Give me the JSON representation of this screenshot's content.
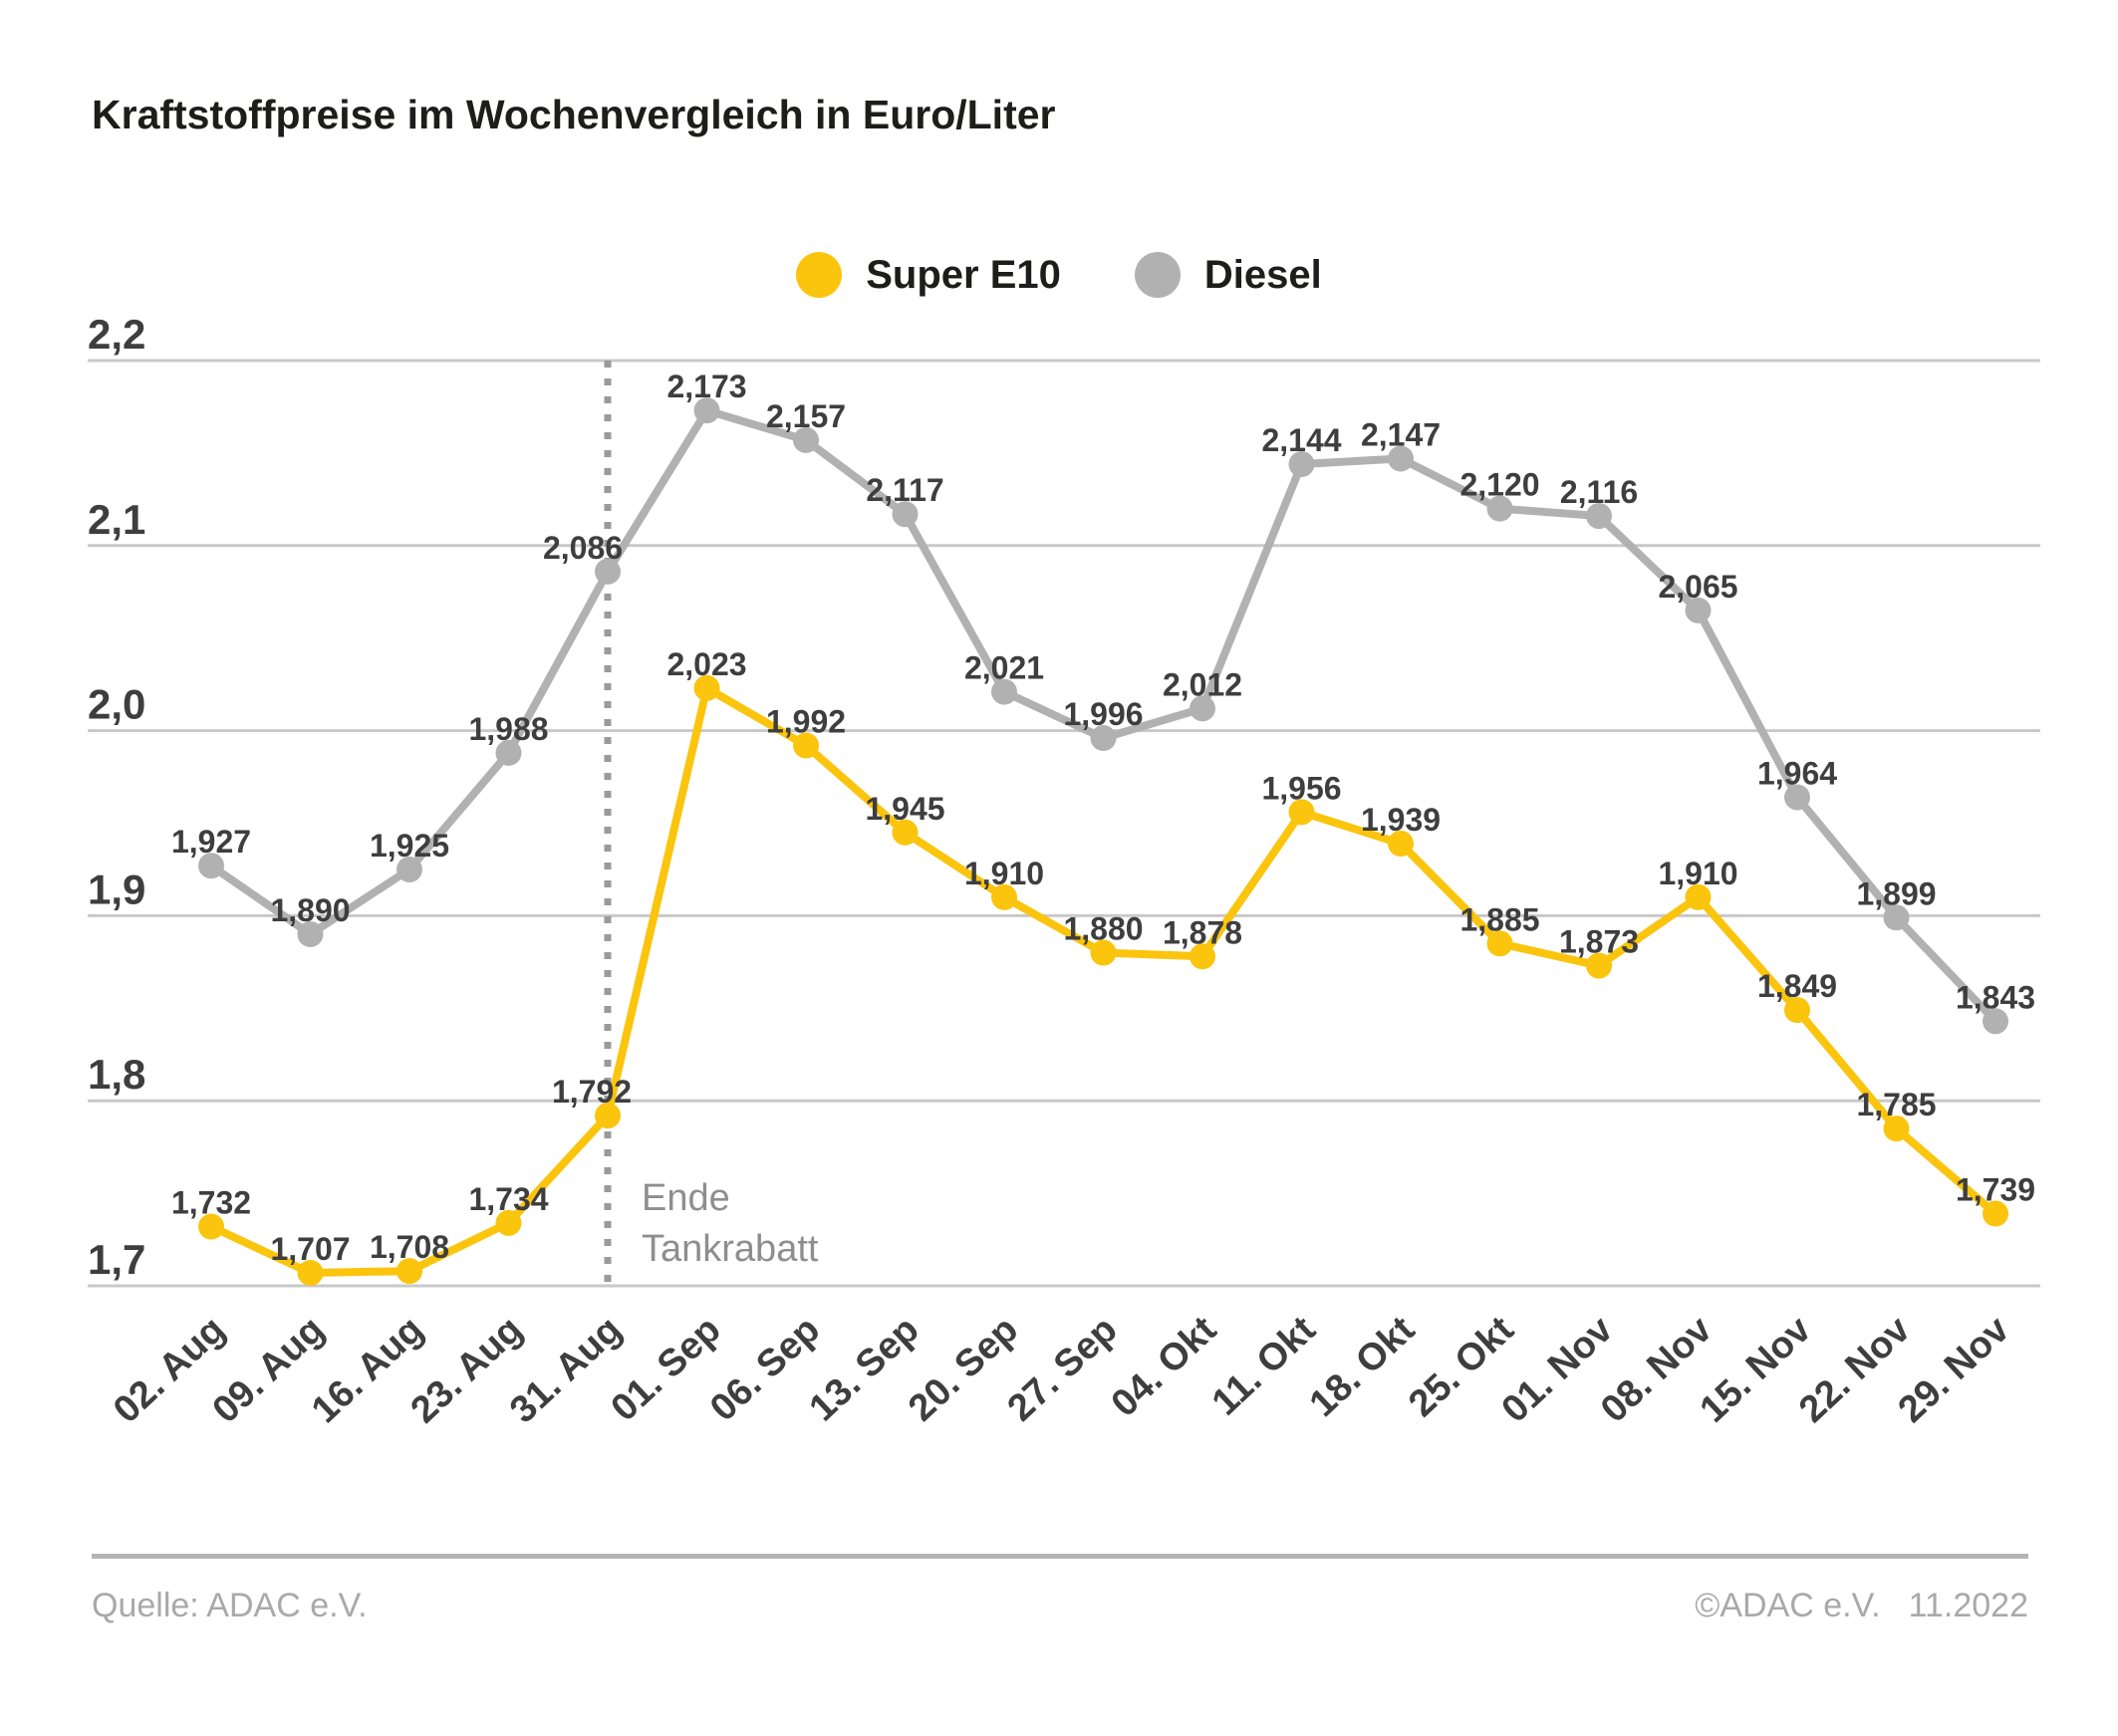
{
  "title": "Kraftstoffpreise im Wochenvergleich in Euro/Liter",
  "legend": {
    "items": [
      "Super E10",
      "Diesel"
    ]
  },
  "footer": {
    "source": "Quelle: ADAC e.V.",
    "copyright": "©ADAC e.V.",
    "date": "11.2022"
  },
  "chart_data": {
    "type": "line",
    "title": "Kraftstoffpreise im Wochenvergleich in Euro/Liter",
    "unit": "Euro/Liter",
    "categories": [
      "02. Aug",
      "09. Aug",
      "16. Aug",
      "23. Aug",
      "31. Aug",
      "01. Sep",
      "06. Sep",
      "13. Sep",
      "20. Sep",
      "27. Sep",
      "04. Okt",
      "11. Okt",
      "18. Okt",
      "25. Okt",
      "01. Nov",
      "08. Nov",
      "15. Nov",
      "22. Nov",
      "29. Nov"
    ],
    "series": [
      {
        "name": "Super E10",
        "color": "#FBC40D",
        "values": [
          1.732,
          1.707,
          1.708,
          1.734,
          1.792,
          2.023,
          1.992,
          1.945,
          1.91,
          1.88,
          1.878,
          1.956,
          1.939,
          1.885,
          1.873,
          1.91,
          1.849,
          1.785,
          1.739
        ],
        "labels": [
          "1,732",
          "1,707",
          "1,708",
          "1,734",
          "1,792",
          "2,023",
          "1,992",
          "1,945",
          "1,910",
          "1,880",
          "1,878",
          "1,956",
          "1,939",
          "1,885",
          "1,873",
          "1,910",
          "1,849",
          "1,785",
          "1,739"
        ]
      },
      {
        "name": "Diesel",
        "color": "#B1B1B1",
        "values": [
          1.927,
          1.89,
          1.925,
          1.988,
          2.086,
          2.173,
          2.157,
          2.117,
          2.021,
          1.996,
          2.012,
          2.144,
          2.147,
          2.12,
          2.116,
          2.065,
          1.964,
          1.899,
          1.843
        ],
        "labels": [
          "1,927",
          "1,890",
          "1,925",
          "1,988",
          "2,086",
          "2,173",
          "2,157",
          "2,117",
          "2,021",
          "1,996",
          "2,012",
          "2,144",
          "2,147",
          "2,120",
          "2,116",
          "2,065",
          "1,964",
          "1,899",
          "1,843"
        ]
      }
    ],
    "y_axis": {
      "min": 1.7,
      "max": 2.2,
      "tick_labels": [
        "2,2",
        "2,1",
        "2,0",
        "1,9",
        "1,8",
        "1,7"
      ],
      "tick_values": [
        2.2,
        2.1,
        2.0,
        1.9,
        1.8,
        1.7
      ],
      "grid": true
    },
    "x_axis": {
      "label_rotation_deg": -43
    },
    "legend_position": "top-center",
    "annotation": {
      "lines": [
        "Ende",
        "Tankrabatt"
      ],
      "category": "31. Aug",
      "category_index": 4
    },
    "colors": {
      "grid": "#C9C9C9",
      "dotted_line": "#9A9A9A",
      "value_labels": "#3E3E3E",
      "axis_labels": "#3E3E3E",
      "annotation_text": "#8E8E8E",
      "title_text": "#1D1D1B",
      "footer_text": "#A9A9A9"
    }
  }
}
